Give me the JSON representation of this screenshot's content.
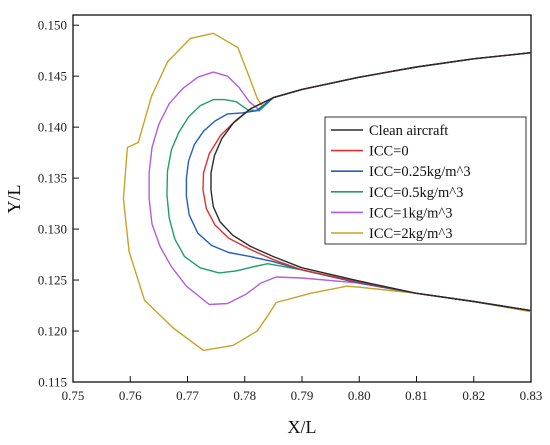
{
  "chart_data": {
    "type": "line",
    "title": "",
    "xlabel": "X/L",
    "ylabel": "Y/L",
    "xlim": [
      0.75,
      0.83
    ],
    "ylim": [
      0.115,
      0.151
    ],
    "xticks": [
      "0.75",
      "0.76",
      "0.77",
      "0.78",
      "0.79",
      "0.80",
      "0.81",
      "0.82",
      "0.83"
    ],
    "yticks": [
      "0.115",
      "0.120",
      "0.125",
      "0.130",
      "0.135",
      "0.140",
      "0.145",
      "0.150"
    ],
    "grid": false,
    "legend_position": "right",
    "series": [
      {
        "name": "Clean aircraft",
        "color": "#2b2b2b",
        "points": [
          [
            0.83,
            0.1473
          ],
          [
            0.82,
            0.1467
          ],
          [
            0.81,
            0.1459
          ],
          [
            0.8,
            0.1449
          ],
          [
            0.79,
            0.1437
          ],
          [
            0.785,
            0.1429
          ],
          [
            0.781,
            0.1418
          ],
          [
            0.778,
            0.1404
          ],
          [
            0.776,
            0.1389
          ],
          [
            0.7747,
            0.1372
          ],
          [
            0.7741,
            0.1355
          ],
          [
            0.7741,
            0.1338
          ],
          [
            0.7745,
            0.1322
          ],
          [
            0.7757,
            0.1307
          ],
          [
            0.7779,
            0.1294
          ],
          [
            0.781,
            0.1283
          ],
          [
            0.785,
            0.1273
          ],
          [
            0.79,
            0.1262
          ],
          [
            0.8,
            0.1249
          ],
          [
            0.81,
            0.1237
          ],
          [
            0.82,
            0.1229
          ],
          [
            0.83,
            0.122
          ]
        ]
      },
      {
        "name": "ICC=0",
        "color": "#e03030",
        "points": [
          [
            0.83,
            0.1473
          ],
          [
            0.82,
            0.1467
          ],
          [
            0.81,
            0.1459
          ],
          [
            0.8,
            0.1449
          ],
          [
            0.79,
            0.1437
          ],
          [
            0.785,
            0.1429
          ],
          [
            0.781,
            0.1418
          ],
          [
            0.7785,
            0.1407
          ],
          [
            0.7758,
            0.1392
          ],
          [
            0.7738,
            0.1374
          ],
          [
            0.7728,
            0.1355
          ],
          [
            0.7727,
            0.1338
          ],
          [
            0.7733,
            0.132
          ],
          [
            0.7748,
            0.1304
          ],
          [
            0.7772,
            0.1291
          ],
          [
            0.781,
            0.128
          ],
          [
            0.785,
            0.127
          ],
          [
            0.79,
            0.126
          ],
          [
            0.8,
            0.1248
          ],
          [
            0.81,
            0.1237
          ],
          [
            0.82,
            0.1229
          ],
          [
            0.83,
            0.122
          ]
        ]
      },
      {
        "name": "ICC=0.25kg/m^3",
        "color": "#1f5fbf",
        "points": [
          [
            0.83,
            0.1473
          ],
          [
            0.82,
            0.1467
          ],
          [
            0.81,
            0.1459
          ],
          [
            0.8,
            0.1449
          ],
          [
            0.79,
            0.1437
          ],
          [
            0.785,
            0.1429
          ],
          [
            0.782,
            0.1416
          ],
          [
            0.7795,
            0.1414
          ],
          [
            0.777,
            0.1413
          ],
          [
            0.7748,
            0.1406
          ],
          [
            0.7728,
            0.1396
          ],
          [
            0.7712,
            0.1383
          ],
          [
            0.7702,
            0.1367
          ],
          [
            0.7698,
            0.135
          ],
          [
            0.7698,
            0.1332
          ],
          [
            0.7703,
            0.1314
          ],
          [
            0.7718,
            0.1296
          ],
          [
            0.7742,
            0.1284
          ],
          [
            0.7772,
            0.1277
          ],
          [
            0.781,
            0.1273
          ],
          [
            0.785,
            0.1268
          ],
          [
            0.79,
            0.126
          ],
          [
            0.8,
            0.1247
          ],
          [
            0.81,
            0.1237
          ],
          [
            0.82,
            0.1229
          ],
          [
            0.83,
            0.122
          ]
        ]
      },
      {
        "name": "ICC=0.5kg/m^3",
        "color": "#1e9e6a",
        "points": [
          [
            0.83,
            0.1473
          ],
          [
            0.82,
            0.1467
          ],
          [
            0.81,
            0.1459
          ],
          [
            0.8,
            0.1449
          ],
          [
            0.79,
            0.1437
          ],
          [
            0.785,
            0.1429
          ],
          [
            0.7825,
            0.1416
          ],
          [
            0.7805,
            0.1417
          ],
          [
            0.7785,
            0.1425
          ],
          [
            0.7765,
            0.1427
          ],
          [
            0.7745,
            0.1427
          ],
          [
            0.7722,
            0.1421
          ],
          [
            0.7702,
            0.141
          ],
          [
            0.7685,
            0.1395
          ],
          [
            0.7672,
            0.1378
          ],
          [
            0.7665,
            0.1357
          ],
          [
            0.7664,
            0.1334
          ],
          [
            0.7668,
            0.1311
          ],
          [
            0.7678,
            0.129
          ],
          [
            0.7695,
            0.1273
          ],
          [
            0.7722,
            0.1262
          ],
          [
            0.7755,
            0.1257
          ],
          [
            0.7785,
            0.1259
          ],
          [
            0.7815,
            0.1263
          ],
          [
            0.784,
            0.1266
          ],
          [
            0.79,
            0.126
          ],
          [
            0.8,
            0.1247
          ],
          [
            0.81,
            0.1237
          ],
          [
            0.82,
            0.1229
          ],
          [
            0.83,
            0.122
          ]
        ]
      },
      {
        "name": "ICC=1kg/m^3",
        "color": "#b35de0",
        "points": [
          [
            0.83,
            0.1473
          ],
          [
            0.82,
            0.1467
          ],
          [
            0.81,
            0.1459
          ],
          [
            0.8,
            0.1449
          ],
          [
            0.79,
            0.1437
          ],
          [
            0.785,
            0.1429
          ],
          [
            0.7825,
            0.1417
          ],
          [
            0.7808,
            0.1425
          ],
          [
            0.779,
            0.1439
          ],
          [
            0.777,
            0.145
          ],
          [
            0.7745,
            0.1454
          ],
          [
            0.7718,
            0.1449
          ],
          [
            0.7692,
            0.1438
          ],
          [
            0.7668,
            0.1423
          ],
          [
            0.765,
            0.1403
          ],
          [
            0.7638,
            0.138
          ],
          [
            0.7633,
            0.1355
          ],
          [
            0.7633,
            0.133
          ],
          [
            0.7638,
            0.1305
          ],
          [
            0.7652,
            0.1283
          ],
          [
            0.7672,
            0.1263
          ],
          [
            0.7698,
            0.1244
          ],
          [
            0.7738,
            0.1226
          ],
          [
            0.777,
            0.1227
          ],
          [
            0.7802,
            0.1236
          ],
          [
            0.7828,
            0.1247
          ],
          [
            0.7855,
            0.1253
          ],
          [
            0.79,
            0.1252
          ],
          [
            0.8,
            0.1247
          ],
          [
            0.81,
            0.1237
          ],
          [
            0.82,
            0.1229
          ],
          [
            0.83,
            0.122
          ]
        ]
      },
      {
        "name": "ICC=2kg/m^3",
        "color": "#c9a227",
        "points": [
          [
            0.83,
            0.1473
          ],
          [
            0.82,
            0.1467
          ],
          [
            0.81,
            0.1459
          ],
          [
            0.8,
            0.1449
          ],
          [
            0.79,
            0.1437
          ],
          [
            0.785,
            0.1429
          ],
          [
            0.7832,
            0.142
          ],
          [
            0.7822,
            0.1428
          ],
          [
            0.781,
            0.1446
          ],
          [
            0.7788,
            0.1478
          ],
          [
            0.7745,
            0.1492
          ],
          [
            0.7705,
            0.1487
          ],
          [
            0.7665,
            0.1464
          ],
          [
            0.7637,
            0.143
          ],
          [
            0.7614,
            0.1385
          ],
          [
            0.7595,
            0.138
          ],
          [
            0.7588,
            0.133
          ],
          [
            0.7598,
            0.1278
          ],
          [
            0.7625,
            0.123
          ],
          [
            0.7675,
            0.1203
          ],
          [
            0.7728,
            0.1181
          ],
          [
            0.778,
            0.1186
          ],
          [
            0.7822,
            0.12
          ],
          [
            0.784,
            0.1215
          ],
          [
            0.7855,
            0.1228
          ],
          [
            0.7915,
            0.1237
          ],
          [
            0.7978,
            0.1244
          ],
          [
            0.8,
            0.1243
          ],
          [
            0.81,
            0.1237
          ],
          [
            0.82,
            0.1229
          ],
          [
            0.83,
            0.1219
          ]
        ]
      }
    ]
  }
}
